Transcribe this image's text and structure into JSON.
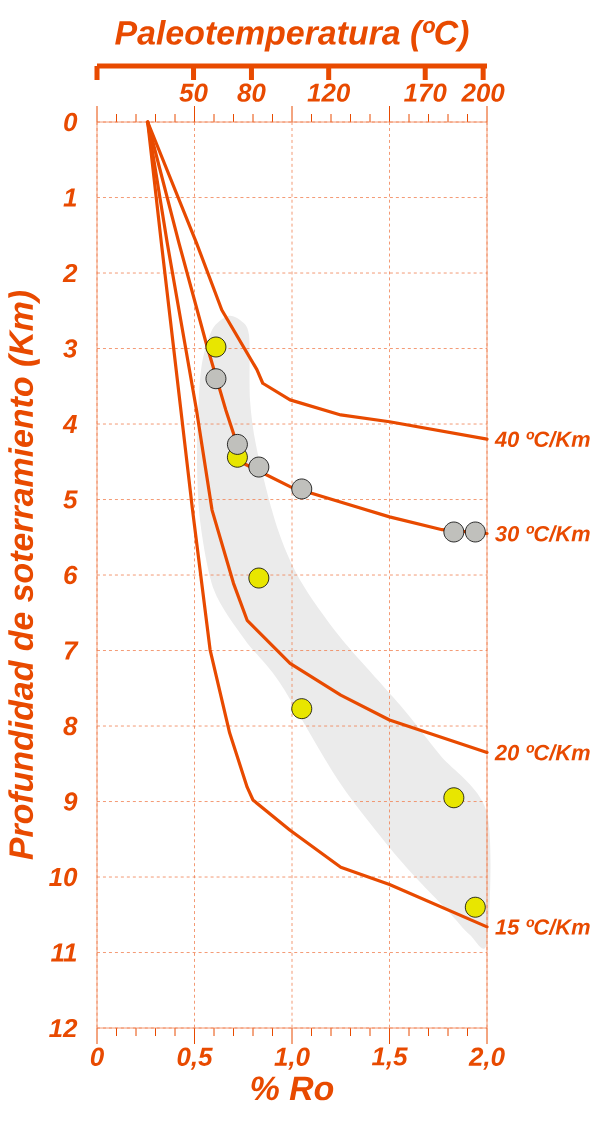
{
  "chart_data": {
    "type": "line",
    "x2label": "Paleotemperatura (ºC)",
    "xlabel": "% Ro",
    "ylabel": "Profundidad de soterramiento (Km)",
    "xlim": [
      0,
      2
    ],
    "xticks": [
      0,
      {
        "value": 0.5,
        "label": "0,5"
      },
      {
        "value": 1,
        "label": "1,0"
      },
      {
        "value": 1.5,
        "label": "1,5"
      },
      {
        "value": 2,
        "label": "2,0"
      }
    ],
    "ylim": [
      12,
      0
    ],
    "yticks": [
      0,
      1,
      2,
      3,
      4,
      5,
      6,
      7,
      8,
      9,
      10,
      11,
      12
    ],
    "x2lim": [
      0,
      202
    ],
    "x2ticks": [
      {
        "value": 0,
        "label": null
      },
      50,
      80,
      120,
      170,
      200
    ],
    "grid": true,
    "series": [
      {
        "name": "40 ºC/Km",
        "marker": "none",
        "line_style": "solid",
        "color": "#e84a00",
        "x": [
          0.26,
          0.51,
          0.64,
          0.82,
          0.85,
          0.99,
          1.25,
          1.5,
          2.0
        ],
        "values": [
          0,
          1.6,
          2.49,
          3.28,
          3.46,
          3.68,
          3.88,
          3.97,
          4.2
        ]
      },
      {
        "name": "30 ºC/Km",
        "marker": "none",
        "line_style": "solid",
        "color": "#e84a00",
        "x": [
          0.26,
          0.42,
          0.56,
          0.66,
          0.75,
          0.99,
          1.5,
          1.77,
          2.0
        ],
        "values": [
          0,
          1.6,
          2.93,
          3.81,
          4.52,
          4.83,
          5.23,
          5.4,
          5.45
        ]
      },
      {
        "name": "20 ºC/Km",
        "marker": "none",
        "line_style": "solid",
        "color": "#e84a00",
        "x": [
          0.26,
          0.36,
          0.51,
          0.59,
          0.7,
          0.77,
          0.99,
          1.25,
          1.5,
          2.0
        ],
        "values": [
          0,
          1.6,
          3.81,
          5.14,
          6.11,
          6.6,
          7.17,
          7.59,
          7.92,
          8.35
        ]
      },
      {
        "name": "15 ºC/Km",
        "marker": "none",
        "line_style": "solid",
        "color": "#e84a00",
        "x": [
          0.26,
          0.33,
          0.49,
          0.58,
          0.68,
          0.77,
          0.8,
          0.99,
          1.25,
          1.5,
          2.0
        ],
        "values": [
          0,
          1.6,
          5.14,
          6.99,
          8.09,
          8.81,
          8.98,
          9.38,
          9.87,
          10.1,
          10.66
        ]
      },
      {
        "type": "scatter",
        "marker": "circle",
        "color": "#e8e600",
        "x": [
          0.61,
          0.72,
          0.83,
          1.05,
          1.83,
          1.94
        ],
        "values": [
          2.98,
          4.44,
          6.04,
          7.77,
          8.95,
          10.4
        ]
      },
      {
        "type": "scatter",
        "marker": "circle",
        "color": "#c0c0bc",
        "x": [
          0.61,
          0.72,
          0.83,
          1.05,
          1.83,
          1.94
        ],
        "values": [
          3.4,
          4.27,
          4.57,
          4.86,
          5.43,
          5.43
        ]
      }
    ]
  }
}
